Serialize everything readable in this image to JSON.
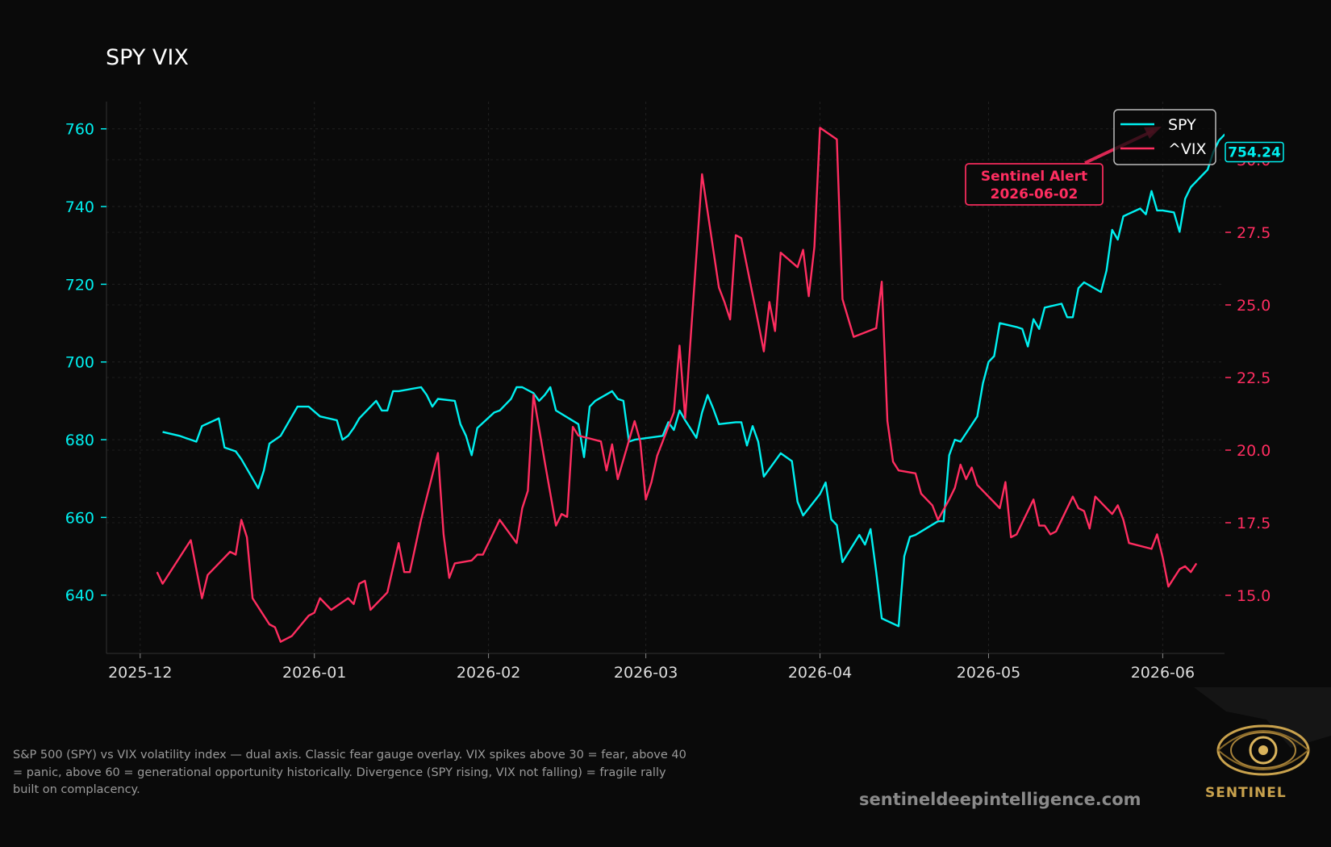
{
  "title": "SPY VIX",
  "caption": "S&P 500 (SPY) vs VIX volatility index — dual axis. Classic fear gauge overlay. VIX spikes above 30 = fear, above 40 = panic, above 60 = generational opportunity historically. Divergence (SPY rising, VIX not falling) = fragile rally built on complacency.",
  "website": "sentineldeepintelligence.com",
  "logo_text": "SENTINEL",
  "colors": {
    "background": "#0a0a0a",
    "spy": "#00f0f0",
    "vix": "#ff2d60",
    "grid": "#222222"
  },
  "chart_data": {
    "type": "line",
    "title": "SPY VIX",
    "x_tick_labels": [
      "2025-12",
      "2026-01",
      "2026-02",
      "2026-03",
      "2026-04",
      "2026-05",
      "2026-06"
    ],
    "x_ticks": [
      "2025-12-01",
      "2026-01-01",
      "2026-02-01",
      "2026-03-01",
      "2026-04-01",
      "2026-05-01",
      "2026-06-01"
    ],
    "xlim": [
      "2025-11-25",
      "2026-06-12"
    ],
    "y_left": {
      "label": "",
      "ticks": [
        640,
        660,
        680,
        700,
        720,
        740,
        760
      ],
      "lim": [
        625,
        767
      ],
      "color": "#00f0f0"
    },
    "y_right": {
      "label": "",
      "ticks": [
        15.0,
        17.5,
        20.0,
        22.5,
        25.0,
        27.5,
        30.0
      ],
      "tick_labels": [
        "15.0",
        "17.5",
        "20.0",
        "22.5",
        "25.0",
        "27.5",
        "30.0"
      ],
      "lim": [
        13.0,
        32.0
      ],
      "color": "#ff2d60"
    },
    "grid": true,
    "legend": {
      "position": "top-right",
      "entries": [
        "SPY",
        "^VIX"
      ]
    },
    "series": [
      {
        "name": "SPY",
        "axis": "left",
        "color": "#00f0f0",
        "points": [
          [
            "2025-12-05",
            682
          ],
          [
            "2025-12-08",
            681
          ],
          [
            "2025-12-09",
            680.5
          ],
          [
            "2025-12-10",
            680
          ],
          [
            "2025-12-11",
            679.5
          ],
          [
            "2025-12-12",
            683.5
          ],
          [
            "2025-12-15",
            685.5
          ],
          [
            "2025-12-16",
            678
          ],
          [
            "2025-12-17",
            677.5
          ],
          [
            "2025-12-18",
            677
          ],
          [
            "2025-12-19",
            675
          ],
          [
            "2025-12-22",
            667.5
          ],
          [
            "2025-12-23",
            672
          ],
          [
            "2025-12-24",
            679
          ],
          [
            "2025-12-26",
            681
          ],
          [
            "2025-12-29",
            688.5
          ],
          [
            "2025-12-30",
            688.5
          ],
          [
            "2025-12-31",
            688.5
          ],
          [
            "2026-01-02",
            686
          ],
          [
            "2026-01-05",
            685
          ],
          [
            "2026-01-06",
            680
          ],
          [
            "2026-01-07",
            681
          ],
          [
            "2026-01-08",
            683
          ],
          [
            "2026-01-09",
            685.5
          ],
          [
            "2026-01-12",
            690
          ],
          [
            "2026-01-13",
            687.5
          ],
          [
            "2026-01-14",
            687.5
          ],
          [
            "2026-01-15",
            692.5
          ],
          [
            "2026-01-16",
            692.5
          ],
          [
            "2026-01-20",
            693.5
          ],
          [
            "2026-01-21",
            691.5
          ],
          [
            "2026-01-22",
            688.5
          ],
          [
            "2026-01-23",
            690.5
          ],
          [
            "2026-01-26",
            690
          ],
          [
            "2026-01-27",
            684
          ],
          [
            "2026-01-28",
            681
          ],
          [
            "2026-01-29",
            676
          ],
          [
            "2026-01-30",
            683
          ],
          [
            "2026-02-02",
            687
          ],
          [
            "2026-02-03",
            687.5
          ],
          [
            "2026-02-04",
            689
          ],
          [
            "2026-02-05",
            690.5
          ],
          [
            "2026-02-06",
            693.5
          ],
          [
            "2026-02-07",
            693.5
          ],
          [
            "2026-02-09",
            692
          ],
          [
            "2026-02-10",
            690
          ],
          [
            "2026-02-11",
            691.5
          ],
          [
            "2026-02-12",
            693.5
          ],
          [
            "2026-02-13",
            687.5
          ],
          [
            "2026-02-17",
            684
          ],
          [
            "2026-02-18",
            675.5
          ],
          [
            "2026-02-19",
            688.5
          ],
          [
            "2026-02-20",
            690
          ],
          [
            "2026-02-23",
            692.5
          ],
          [
            "2026-02-24",
            690.5
          ],
          [
            "2026-02-25",
            690
          ],
          [
            "2026-02-26",
            679.5
          ],
          [
            "2026-02-27",
            680
          ],
          [
            "2026-03-04",
            681
          ],
          [
            "2026-03-05",
            684.5
          ],
          [
            "2026-03-06",
            682.5
          ],
          [
            "2026-03-07",
            687.5
          ],
          [
            "2026-03-08",
            685
          ],
          [
            "2026-03-10",
            680.5
          ],
          [
            "2026-03-11",
            687
          ],
          [
            "2026-03-12",
            691.5
          ],
          [
            "2026-03-13",
            688
          ],
          [
            "2026-03-14",
            684
          ],
          [
            "2026-03-17",
            684.5
          ],
          [
            "2026-03-18",
            684.5
          ],
          [
            "2026-03-19",
            678.5
          ],
          [
            "2026-03-20",
            683.5
          ],
          [
            "2026-03-21",
            679.5
          ],
          [
            "2026-03-22",
            670.5
          ],
          [
            "2026-03-25",
            676.5
          ],
          [
            "2026-03-27",
            674.5
          ],
          [
            "2026-03-28",
            664
          ],
          [
            "2026-03-29",
            660.5
          ],
          [
            "2026-04-01",
            666
          ],
          [
            "2026-04-02",
            669
          ],
          [
            "2026-04-03",
            659.5
          ],
          [
            "2026-04-04",
            658
          ],
          [
            "2026-04-05",
            648.5
          ],
          [
            "2026-04-08",
            655.5
          ],
          [
            "2026-04-09",
            653
          ],
          [
            "2026-04-10",
            657
          ],
          [
            "2026-04-11",
            646
          ],
          [
            "2026-04-12",
            634
          ],
          [
            "2026-04-15",
            632
          ],
          [
            "2026-04-16",
            650
          ],
          [
            "2026-04-17",
            655
          ],
          [
            "2026-04-18",
            655.5
          ],
          [
            "2026-04-22",
            659
          ],
          [
            "2026-04-23",
            659
          ],
          [
            "2026-04-24",
            676
          ],
          [
            "2026-04-25",
            680
          ],
          [
            "2026-04-26",
            679.5
          ],
          [
            "2026-04-29",
            686
          ],
          [
            "2026-04-30",
            694.5
          ],
          [
            "2026-05-01",
            700
          ],
          [
            "2026-05-02",
            701.5
          ],
          [
            "2026-05-03",
            710
          ],
          [
            "2026-05-06",
            709
          ],
          [
            "2026-05-07",
            708.5
          ],
          [
            "2026-05-08",
            704
          ],
          [
            "2026-05-09",
            711
          ],
          [
            "2026-05-10",
            708.5
          ],
          [
            "2026-05-11",
            714
          ],
          [
            "2026-05-14",
            715
          ],
          [
            "2026-05-15",
            711.5
          ],
          [
            "2026-05-16",
            711.5
          ],
          [
            "2026-05-17",
            719
          ],
          [
            "2026-05-18",
            720.5
          ],
          [
            "2026-05-21",
            718
          ],
          [
            "2026-05-22",
            723.5
          ],
          [
            "2026-05-23",
            734
          ],
          [
            "2026-05-24",
            731.5
          ],
          [
            "2026-05-25",
            737.5
          ],
          [
            "2026-05-28",
            739.5
          ],
          [
            "2026-05-29",
            738
          ],
          [
            "2026-05-30",
            744
          ],
          [
            "2026-05-31",
            739
          ],
          [
            "2026-06-01",
            739
          ],
          [
            "2026-06-03",
            738.5
          ],
          [
            "2026-06-04",
            733.5
          ],
          [
            "2026-06-05",
            742
          ],
          [
            "2026-06-06",
            745
          ],
          [
            "2026-06-07",
            746.5
          ],
          [
            "2026-06-08",
            748
          ],
          [
            "2026-06-09",
            749.5
          ],
          [
            "2026-06-10",
            754
          ],
          [
            "2026-06-11",
            757
          ],
          [
            "2026-06-12",
            758.5
          ],
          [
            "2026-06-14",
            760
          ],
          [
            "2026-06-15",
            754.24
          ]
        ]
      },
      {
        "name": "^VIX",
        "axis": "right",
        "color": "#ff2d60",
        "points": [
          [
            "2025-12-04",
            15.8
          ],
          [
            "2025-12-05",
            15.4
          ],
          [
            "2025-12-09",
            16.6
          ],
          [
            "2025-12-10",
            16.9
          ],
          [
            "2025-12-11",
            15.9
          ],
          [
            "2025-12-12",
            14.9
          ],
          [
            "2025-12-13",
            15.7
          ],
          [
            "2025-12-16",
            16.3
          ],
          [
            "2025-12-17",
            16.5
          ],
          [
            "2025-12-18",
            16.4
          ],
          [
            "2025-12-19",
            17.6
          ],
          [
            "2025-12-20",
            17.0
          ],
          [
            "2025-12-21",
            14.9
          ],
          [
            "2025-12-24",
            14.0
          ],
          [
            "2025-12-25",
            13.9
          ],
          [
            "2025-12-26",
            13.4
          ],
          [
            "2025-12-28",
            13.6
          ],
          [
            "2025-12-31",
            14.3
          ],
          [
            "2026-01-01",
            14.4
          ],
          [
            "2026-01-02",
            14.9
          ],
          [
            "2026-01-04",
            14.5
          ],
          [
            "2026-01-07",
            14.9
          ],
          [
            "2026-01-08",
            14.7
          ],
          [
            "2026-01-09",
            15.4
          ],
          [
            "2026-01-10",
            15.5
          ],
          [
            "2026-01-11",
            14.5
          ],
          [
            "2026-01-14",
            15.1
          ],
          [
            "2026-01-16",
            16.8
          ],
          [
            "2026-01-17",
            15.8
          ],
          [
            "2026-01-18",
            15.8
          ],
          [
            "2026-01-20",
            17.6
          ],
          [
            "2026-01-23",
            19.9
          ],
          [
            "2026-01-24",
            17.1
          ],
          [
            "2026-01-25",
            15.6
          ],
          [
            "2026-01-26",
            16.1
          ],
          [
            "2026-01-29",
            16.2
          ],
          [
            "2026-01-30",
            16.4
          ],
          [
            "2026-01-31",
            16.4
          ],
          [
            "2026-02-03",
            17.6
          ],
          [
            "2026-02-06",
            16.8
          ],
          [
            "2026-02-07",
            18.0
          ],
          [
            "2026-02-08",
            18.6
          ],
          [
            "2026-02-09",
            21.9
          ],
          [
            "2026-02-11",
            19.6
          ],
          [
            "2026-02-13",
            17.4
          ],
          [
            "2026-02-14",
            17.8
          ],
          [
            "2026-02-15",
            17.7
          ],
          [
            "2026-02-16",
            20.8
          ],
          [
            "2026-02-17",
            20.5
          ],
          [
            "2026-02-21",
            20.3
          ],
          [
            "2026-02-22",
            19.3
          ],
          [
            "2026-02-23",
            20.2
          ],
          [
            "2026-02-24",
            19.0
          ],
          [
            "2026-02-27",
            21.0
          ],
          [
            "2026-02-28",
            20.3
          ],
          [
            "2026-03-01",
            18.3
          ],
          [
            "2026-03-02",
            18.9
          ],
          [
            "2026-03-03",
            19.8
          ],
          [
            "2026-03-06",
            21.3
          ],
          [
            "2026-03-07",
            23.6
          ],
          [
            "2026-03-08",
            21.1
          ],
          [
            "2026-03-09",
            23.9
          ],
          [
            "2026-03-11",
            29.5
          ],
          [
            "2026-03-14",
            25.6
          ],
          [
            "2026-03-15",
            25.1
          ],
          [
            "2026-03-16",
            24.5
          ],
          [
            "2026-03-17",
            27.4
          ],
          [
            "2026-03-18",
            27.3
          ],
          [
            "2026-03-21",
            24.4
          ],
          [
            "2026-03-22",
            23.4
          ],
          [
            "2026-03-23",
            25.1
          ],
          [
            "2026-03-24",
            24.1
          ],
          [
            "2026-03-25",
            26.8
          ],
          [
            "2026-03-28",
            26.3
          ],
          [
            "2026-03-29",
            26.9
          ],
          [
            "2026-03-30",
            25.3
          ],
          [
            "2026-03-31",
            27.0
          ],
          [
            "2026-04-01",
            31.1
          ],
          [
            "2026-04-04",
            30.7
          ],
          [
            "2026-04-05",
            25.2
          ],
          [
            "2026-04-07",
            23.9
          ],
          [
            "2026-04-11",
            24.2
          ],
          [
            "2026-04-12",
            25.8
          ],
          [
            "2026-04-13",
            21.0
          ],
          [
            "2026-04-14",
            19.6
          ],
          [
            "2026-04-15",
            19.3
          ],
          [
            "2026-04-18",
            19.2
          ],
          [
            "2026-04-19",
            18.5
          ],
          [
            "2026-04-21",
            18.1
          ],
          [
            "2026-04-22",
            17.6
          ],
          [
            "2026-04-24",
            18.3
          ],
          [
            "2026-04-25",
            18.7
          ],
          [
            "2026-04-26",
            19.5
          ],
          [
            "2026-04-27",
            19.0
          ],
          [
            "2026-04-28",
            19.4
          ],
          [
            "2026-04-29",
            18.8
          ],
          [
            "2026-05-03",
            18.0
          ],
          [
            "2026-05-04",
            18.9
          ],
          [
            "2026-05-05",
            17.0
          ],
          [
            "2026-05-06",
            17.1
          ],
          [
            "2026-05-09",
            18.3
          ],
          [
            "2026-05-10",
            17.4
          ],
          [
            "2026-05-11",
            17.4
          ],
          [
            "2026-05-12",
            17.1
          ],
          [
            "2026-05-13",
            17.2
          ],
          [
            "2026-05-16",
            18.4
          ],
          [
            "2026-05-17",
            18.0
          ],
          [
            "2026-05-18",
            17.9
          ],
          [
            "2026-05-19",
            17.3
          ],
          [
            "2026-05-20",
            18.4
          ],
          [
            "2026-05-23",
            17.8
          ],
          [
            "2026-05-24",
            18.1
          ],
          [
            "2026-05-25",
            17.6
          ],
          [
            "2026-05-26",
            16.8
          ],
          [
            "2026-05-30",
            16.6
          ],
          [
            "2026-05-31",
            17.1
          ],
          [
            "2026-06-01",
            16.3
          ],
          [
            "2026-06-02",
            15.3
          ],
          [
            "2026-06-04",
            15.9
          ],
          [
            "2026-06-05",
            16.0
          ],
          [
            "2026-06-06",
            15.8
          ],
          [
            "2026-06-07",
            16.1
          ]
        ]
      }
    ],
    "last_value_label": {
      "series": "SPY",
      "value": "754.24"
    },
    "annotations": [
      {
        "text_line1": "Sentinel Alert",
        "text_line2": "2026-06-02",
        "color": "#ff2d60"
      }
    ]
  }
}
